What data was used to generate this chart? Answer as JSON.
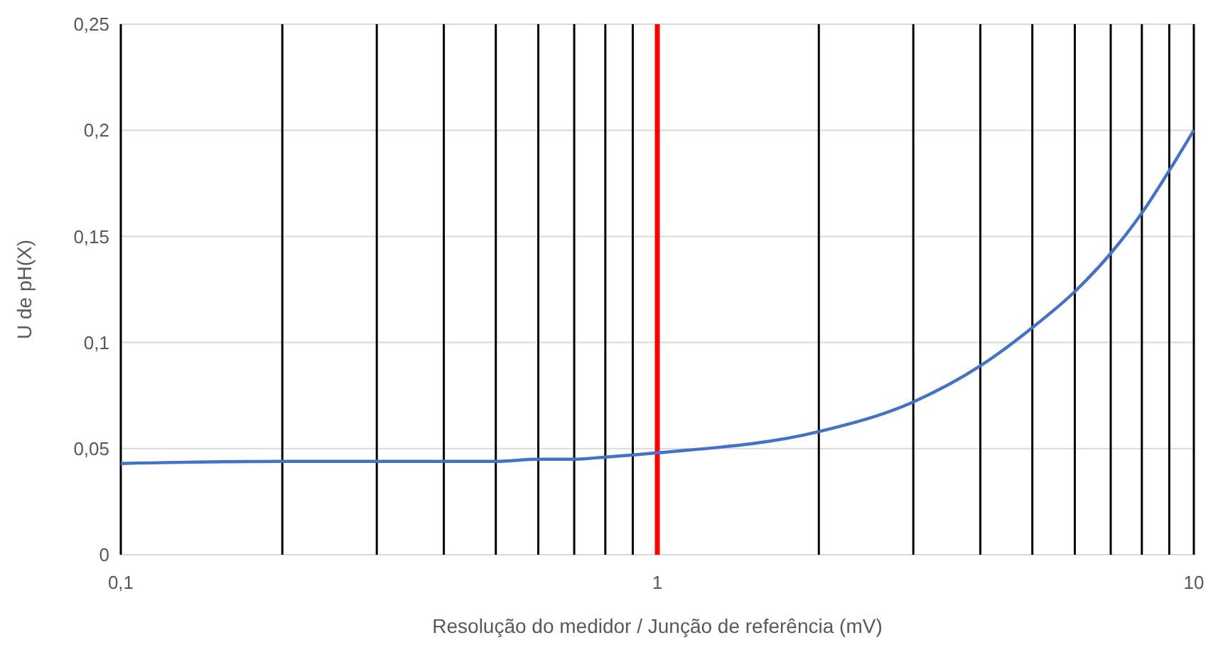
{
  "chart_data": {
    "type": "line",
    "xlabel": "Resolução do medidor /  Junção de referência (mV)",
    "ylabel": "U de pH(X)",
    "log": "x",
    "grid": true,
    "marker": "none",
    "line_style": "solid",
    "xlim": [
      0.1,
      10
    ],
    "xticks": [
      {
        "value": 0.1,
        "label": "0,1"
      },
      {
        "value": 0.2,
        "label": null
      },
      {
        "value": 0.3,
        "label": null
      },
      {
        "value": 0.4,
        "label": null
      },
      {
        "value": 0.5,
        "label": null
      },
      {
        "value": 0.6,
        "label": null
      },
      {
        "value": 0.7,
        "label": null
      },
      {
        "value": 0.8,
        "label": null
      },
      {
        "value": 0.9,
        "label": null
      },
      1,
      {
        "value": 2,
        "label": null
      },
      {
        "value": 3,
        "label": null
      },
      {
        "value": 4,
        "label": null
      },
      {
        "value": 5,
        "label": null
      },
      {
        "value": 6,
        "label": null
      },
      {
        "value": 7,
        "label": null
      },
      {
        "value": 8,
        "label": null
      },
      {
        "value": 9,
        "label": null
      },
      10
    ],
    "ylim": [
      0,
      0.25
    ],
    "yticks": [
      0,
      {
        "value": 0.05,
        "label": "0,05"
      },
      {
        "value": 0.1,
        "label": "0,1"
      },
      {
        "value": 0.15,
        "label": "0,15"
      },
      {
        "value": 0.2,
        "label": "0,2"
      },
      {
        "value": 0.25,
        "label": "0,25"
      }
    ],
    "x": [
      0.1,
      0.2,
      0.3,
      0.4,
      0.5,
      0.6,
      0.7,
      0.8,
      0.9,
      1,
      2,
      3,
      4,
      5,
      6,
      7,
      8,
      9,
      10
    ],
    "series": [
      {
        "color": "#4472c4",
        "values": [
          0.043,
          0.044,
          0.044,
          0.044,
          0.044,
          0.045,
          0.045,
          0.046,
          0.047,
          0.048,
          0.058,
          0.072,
          0.089,
          0.107,
          0.124,
          0.142,
          0.161,
          0.181,
          0.2
        ]
      }
    ],
    "ref_lines": [
      {
        "axis": "x",
        "value": 1,
        "color": "#ff0000"
      }
    ]
  }
}
